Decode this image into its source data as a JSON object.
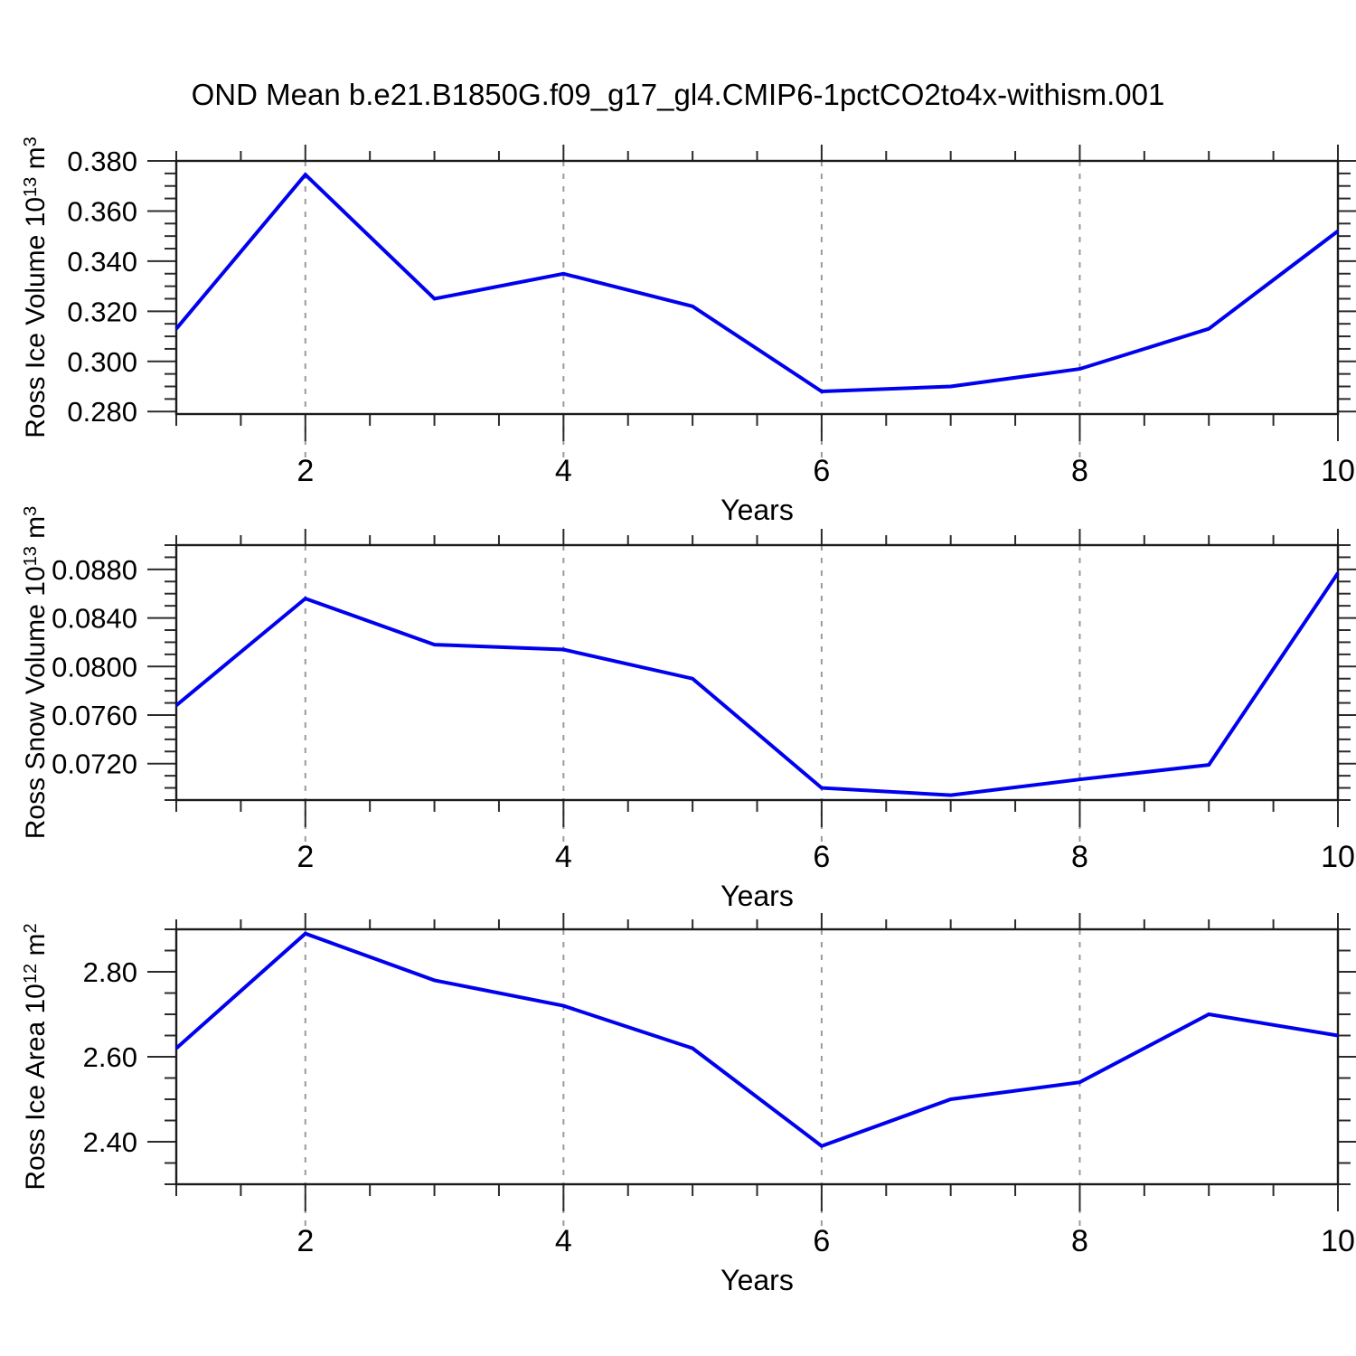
{
  "title": "OND Mean b.e21.B1850G.f09_g17_gl4.CMIP6-1pctCO2to4x-withism.001",
  "colors": {
    "line": "#0000ee",
    "grid": "#9a9a9a",
    "axis": "#1b1b1b",
    "tick": "#2b2b2b",
    "text": "#000000"
  },
  "chart_data": [
    {
      "type": "line",
      "name": "ross-ice-volume",
      "ylabel": "Ross Ice Volume 10^13 m^3",
      "ylabel_parts": [
        {
          "text": "Ross Ice Volume 10"
        },
        {
          "sup": "13"
        },
        {
          "text": " m"
        },
        {
          "sup": "3"
        }
      ],
      "xlabel": "Years",
      "x": [
        1,
        2,
        3,
        4,
        5,
        6,
        7,
        8,
        9,
        10
      ],
      "y": [
        0.313,
        0.3745,
        0.325,
        0.335,
        0.322,
        0.288,
        0.29,
        0.297,
        0.313,
        0.352
      ],
      "xlim": [
        1,
        10
      ],
      "ylim": [
        0.279,
        0.38
      ],
      "yticks": [
        0.28,
        0.3,
        0.32,
        0.34,
        0.36,
        0.38
      ],
      "ytick_labels": [
        "0.280",
        "0.300",
        "0.320",
        "0.340",
        "0.360",
        "0.380"
      ],
      "yminor_step": 0.005,
      "xticks": [
        2,
        4,
        6,
        8,
        10
      ],
      "xtick_labels": [
        "2",
        "4",
        "6",
        "8",
        "10"
      ],
      "xminor_step": 0.5,
      "grid_x": [
        2,
        4,
        6,
        8
      ],
      "grid_style": "vertical-dashed",
      "legend": "none"
    },
    {
      "type": "line",
      "name": "ross-snow-volume",
      "ylabel": "Ross Snow Volume 10^13 m^3",
      "ylabel_parts": [
        {
          "text": "Ross Snow Volume 10"
        },
        {
          "sup": "13"
        },
        {
          "text": " m"
        },
        {
          "sup": "3"
        }
      ],
      "xlabel": "Years",
      "x": [
        1,
        2,
        3,
        4,
        5,
        6,
        7,
        8,
        9,
        10
      ],
      "y": [
        0.0768,
        0.0856,
        0.0818,
        0.0814,
        0.079,
        0.07,
        0.0694,
        0.0707,
        0.0719,
        0.0877
      ],
      "xlim": [
        1,
        10
      ],
      "ylim": [
        0.069,
        0.09
      ],
      "yticks": [
        0.072,
        0.076,
        0.08,
        0.084,
        0.088
      ],
      "ytick_labels": [
        "0.0720",
        "0.0760",
        "0.0800",
        "0.0840",
        "0.0880"
      ],
      "yminor_step": 0.001,
      "xticks": [
        2,
        4,
        6,
        8,
        10
      ],
      "xtick_labels": [
        "2",
        "4",
        "6",
        "8",
        "10"
      ],
      "xminor_step": 0.5,
      "grid_x": [
        2,
        4,
        6,
        8
      ],
      "grid_style": "vertical-dashed",
      "legend": "none"
    },
    {
      "type": "line",
      "name": "ross-ice-area",
      "ylabel": "Ross Ice Area 10^12 m^2",
      "ylabel_parts": [
        {
          "text": "Ross Ice Area 10"
        },
        {
          "sup": "12"
        },
        {
          "text": " m"
        },
        {
          "sup": "2"
        }
      ],
      "xlabel": "Years",
      "x": [
        1,
        2,
        3,
        4,
        5,
        6,
        7,
        8,
        9,
        10
      ],
      "y": [
        2.62,
        2.89,
        2.78,
        2.72,
        2.62,
        2.39,
        2.5,
        2.54,
        2.7,
        2.65
      ],
      "xlim": [
        1,
        10
      ],
      "ylim": [
        2.3,
        2.9
      ],
      "yticks": [
        2.4,
        2.6,
        2.8
      ],
      "ytick_labels": [
        "2.40",
        "2.60",
        "2.80"
      ],
      "yminor_step": 0.05,
      "xticks": [
        2,
        4,
        6,
        8,
        10
      ],
      "xtick_labels": [
        "2",
        "4",
        "6",
        "8",
        "10"
      ],
      "xminor_step": 0.5,
      "grid_x": [
        2,
        4,
        6,
        8
      ],
      "grid_style": "vertical-dashed",
      "legend": "none"
    }
  ]
}
